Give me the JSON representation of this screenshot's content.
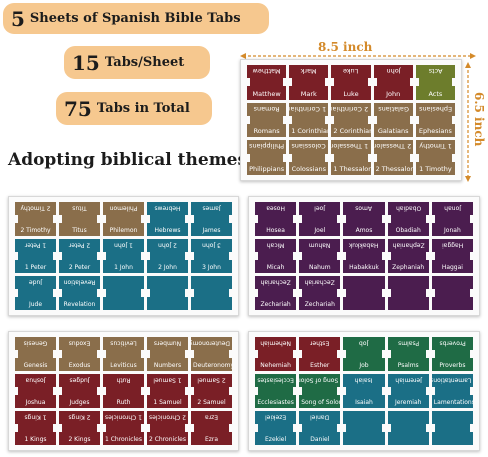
{
  "badges": {
    "sheets": {
      "num": "5",
      "text": "Sheets of Spanish Bible Tabs"
    },
    "per_sheet": {
      "num": "15",
      "text": "Tabs/Sheet"
    },
    "total": {
      "num": "75",
      "text": "Tabs in Total"
    }
  },
  "headline": "Adopting biblical themes",
  "dimensions": {
    "width": "8.5 inch",
    "height": "6.5 inch"
  },
  "sheets": [
    {
      "tabs": [
        {
          "top": "Matthew",
          "bottom": "Matthew",
          "color": "#7a1f26"
        },
        {
          "top": "Mark",
          "bottom": "Mark",
          "color": "#7a1f26"
        },
        {
          "top": "Luke",
          "bottom": "Luke",
          "color": "#7a1f26"
        },
        {
          "top": "John",
          "bottom": "John",
          "color": "#7a1f26"
        },
        {
          "top": "Acts",
          "bottom": "Acts",
          "color": "#6d7d2c"
        },
        {
          "top": "Romans",
          "bottom": "Romans",
          "color": "#8a6e4b"
        },
        {
          "top": "1 Corinthians",
          "bottom": "1 Corinthians",
          "color": "#8a6e4b"
        },
        {
          "top": "2 Corinthians",
          "bottom": "2 Corinthians",
          "color": "#8a6e4b"
        },
        {
          "top": "Galatians",
          "bottom": "Galatians",
          "color": "#8a6e4b"
        },
        {
          "top": "Ephesians",
          "bottom": "Ephesians",
          "color": "#8a6e4b"
        },
        {
          "top": "Philippians",
          "bottom": "Philippians",
          "color": "#8a6e4b"
        },
        {
          "top": "Colossians",
          "bottom": "Colossians",
          "color": "#8a6e4b"
        },
        {
          "top": "1 Thessalonians",
          "bottom": "1 Thessalonians",
          "color": "#8a6e4b"
        },
        {
          "top": "2 Thessalonians",
          "bottom": "2 Thessalonians",
          "color": "#8a6e4b"
        },
        {
          "top": "1 Timothy",
          "bottom": "1 Timothy",
          "color": "#8a6e4b"
        }
      ]
    },
    {
      "tabs": [
        {
          "top": "2 Timothy",
          "bottom": "2 Timothy",
          "color": "#8a6e4b"
        },
        {
          "top": "Titus",
          "bottom": "Titus",
          "color": "#8a6e4b"
        },
        {
          "top": "Philemon",
          "bottom": "Philemon",
          "color": "#8a6e4b"
        },
        {
          "top": "Hebrews",
          "bottom": "Hebrews",
          "color": "#1b6f86"
        },
        {
          "top": "James",
          "bottom": "James",
          "color": "#1b6f86"
        },
        {
          "top": "1 Peter",
          "bottom": "1 Peter",
          "color": "#1b6f86"
        },
        {
          "top": "2 Peter",
          "bottom": "2 Peter",
          "color": "#1b6f86"
        },
        {
          "top": "1 John",
          "bottom": "1 John",
          "color": "#1b6f86"
        },
        {
          "top": "2 John",
          "bottom": "2 John",
          "color": "#1b6f86"
        },
        {
          "top": "3 John",
          "bottom": "3 John",
          "color": "#1b6f86"
        },
        {
          "top": "Jude",
          "bottom": "Jude",
          "color": "#1b6f86"
        },
        {
          "top": "Revelation",
          "bottom": "Revelation",
          "color": "#1b6f86"
        },
        {
          "top": "",
          "bottom": "",
          "color": "#1b6f86"
        },
        {
          "top": "",
          "bottom": "",
          "color": "#1b6f86"
        },
        {
          "top": "",
          "bottom": "",
          "color": "#1b6f86"
        }
      ]
    },
    {
      "tabs": [
        {
          "top": "Hosea",
          "bottom": "Hosea",
          "color": "#4b1d4f"
        },
        {
          "top": "Joel",
          "bottom": "Joel",
          "color": "#4b1d4f"
        },
        {
          "top": "Amos",
          "bottom": "Amos",
          "color": "#4b1d4f"
        },
        {
          "top": "Obadiah",
          "bottom": "Obadiah",
          "color": "#4b1d4f"
        },
        {
          "top": "Jonah",
          "bottom": "Jonah",
          "color": "#4b1d4f"
        },
        {
          "top": "Micah",
          "bottom": "Micah",
          "color": "#4b1d4f"
        },
        {
          "top": "Nahum",
          "bottom": "Nahum",
          "color": "#4b1d4f"
        },
        {
          "top": "Habakkuk",
          "bottom": "Habakkuk",
          "color": "#4b1d4f"
        },
        {
          "top": "Zephaniah",
          "bottom": "Zephaniah",
          "color": "#4b1d4f"
        },
        {
          "top": "Haggai",
          "bottom": "Haggai",
          "color": "#4b1d4f"
        },
        {
          "top": "Zechariah",
          "bottom": "Zechariah",
          "color": "#4b1d4f"
        },
        {
          "top": "Zechariah",
          "bottom": "Zechariah",
          "color": "#4b1d4f"
        },
        {
          "top": "",
          "bottom": "",
          "color": "#4b1d4f"
        },
        {
          "top": "",
          "bottom": "",
          "color": "#4b1d4f"
        },
        {
          "top": "",
          "bottom": "",
          "color": "#4b1d4f"
        }
      ]
    },
    {
      "tabs": [
        {
          "top": "Genesis",
          "bottom": "Genesis",
          "color": "#8a6e4b"
        },
        {
          "top": "Exodus",
          "bottom": "Exodus",
          "color": "#8a6e4b"
        },
        {
          "top": "Leviticus",
          "bottom": "Leviticus",
          "color": "#8a6e4b"
        },
        {
          "top": "Numbers",
          "bottom": "Numbers",
          "color": "#8a6e4b"
        },
        {
          "top": "Deuteronomy",
          "bottom": "Deuteronomy",
          "color": "#8a6e4b"
        },
        {
          "top": "Joshua",
          "bottom": "Joshua",
          "color": "#7a1f26"
        },
        {
          "top": "Judges",
          "bottom": "Judges",
          "color": "#7a1f26"
        },
        {
          "top": "Ruth",
          "bottom": "Ruth",
          "color": "#7a1f26"
        },
        {
          "top": "1 Samuel",
          "bottom": "1 Samuel",
          "color": "#7a1f26"
        },
        {
          "top": "2 Samuel",
          "bottom": "2 Samuel",
          "color": "#7a1f26"
        },
        {
          "top": "1 Kings",
          "bottom": "1 Kings",
          "color": "#7a1f26"
        },
        {
          "top": "2 Kings",
          "bottom": "2 Kings",
          "color": "#7a1f26"
        },
        {
          "top": "1 Chronicles",
          "bottom": "1 Chronicles",
          "color": "#7a1f26"
        },
        {
          "top": "2 Chronicles",
          "bottom": "2 Chronicles",
          "color": "#7a1f26"
        },
        {
          "top": "Ezra",
          "bottom": "Ezra",
          "color": "#7a1f26"
        }
      ]
    },
    {
      "tabs": [
        {
          "top": "Nehemiah",
          "bottom": "Nehemiah",
          "color": "#7a1f26"
        },
        {
          "top": "Esther",
          "bottom": "Esther",
          "color": "#7a1f26"
        },
        {
          "top": "Job",
          "bottom": "Job",
          "color": "#1f6b45"
        },
        {
          "top": "Psalms",
          "bottom": "Psalms",
          "color": "#1f6b45"
        },
        {
          "top": "Proverbs",
          "bottom": "Proverbs",
          "color": "#1f6b45"
        },
        {
          "top": "Ecclesiastes",
          "bottom": "Ecclesiastes",
          "color": "#1f6b45"
        },
        {
          "top": "Song of Solomon",
          "bottom": "Song of Solomon",
          "color": "#1f6b45"
        },
        {
          "top": "Isaiah",
          "bottom": "Isaiah",
          "color": "#1b6f86"
        },
        {
          "top": "Jeremiah",
          "bottom": "Jeremiah",
          "color": "#1b6f86"
        },
        {
          "top": "Lamentations",
          "bottom": "Lamentations",
          "color": "#1b6f86"
        },
        {
          "top": "Ezekiel",
          "bottom": "Ezekiel",
          "color": "#1b6f86"
        },
        {
          "top": "Daniel",
          "bottom": "Daniel",
          "color": "#1b6f86"
        },
        {
          "top": "",
          "bottom": "",
          "color": "#1b6f86"
        },
        {
          "top": "",
          "bottom": "",
          "color": "#1b6f86"
        },
        {
          "top": "",
          "bottom": "",
          "color": "#1b6f86"
        }
      ]
    }
  ]
}
